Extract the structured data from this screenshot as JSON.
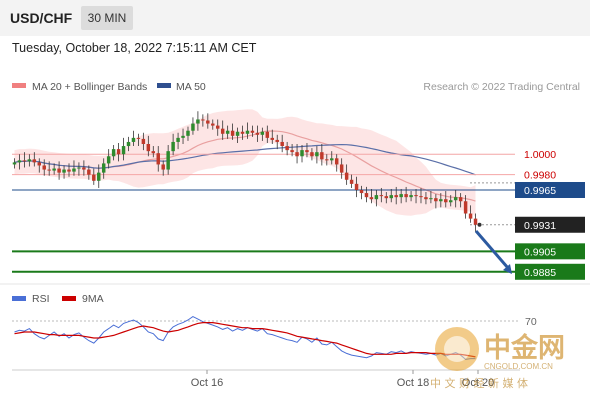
{
  "header": {
    "pair": "USD/CHF",
    "timeframe": "30 MIN"
  },
  "timestamp": "Tuesday, October 18, 2022 7:15:11 AM CET",
  "chart_data": [
    {
      "type": "candlestick",
      "legend": [
        {
          "name": "MA 20 + Bollinger Bands",
          "color": "#f08080"
        },
        {
          "name": "MA 50",
          "color": "#2f4f8f"
        }
      ],
      "credit": "Research © 2022 Trading Central",
      "levels": [
        {
          "label": "1.0000",
          "value": 1.0,
          "color": "#cc0000",
          "style": "text"
        },
        {
          "label": "0.9980",
          "value": 0.998,
          "color": "#cc0000",
          "style": "text"
        },
        {
          "label": "0.9965",
          "value": 0.9965,
          "color": "#1e4b8a",
          "style": "box"
        },
        {
          "label": "0.9931",
          "value": 0.9931,
          "color": "#222222",
          "style": "box"
        },
        {
          "label": "0.9905",
          "value": 0.9905,
          "color": "#1a7a1a",
          "style": "box"
        },
        {
          "label": "0.9885",
          "value": 0.9885,
          "color": "#1a7a1a",
          "style": "box"
        }
      ],
      "ylim": [
        0.9875,
        1.0055
      ],
      "close": [
        0.9992,
        0.9994,
        0.9993,
        0.9995,
        0.9992,
        0.9989,
        0.9985,
        0.9984,
        0.9986,
        0.9982,
        0.9985,
        0.9983,
        0.9986,
        0.9987,
        0.9985,
        0.998,
        0.9974,
        0.9982,
        0.9991,
        0.9998,
        1.0005,
        1.0,
        1.0008,
        1.0012,
        1.0016,
        1.0015,
        1.001,
        1.0003,
        1.0001,
        0.999,
        0.9985,
        1.0003,
        1.0012,
        1.0016,
        1.0018,
        1.0023,
        1.003,
        1.0034,
        1.0033,
        1.003,
        1.0028,
        1.0025,
        1.002,
        1.0023,
        1.0018,
        1.0022,
        1.002,
        1.0023,
        1.0021,
        1.0019,
        1.0022,
        1.0016,
        1.0014,
        1.0012,
        1.0008,
        1.0004,
        1.0002,
        0.9998,
        1.0004,
        1.0002,
        0.9998,
        1.0002,
        0.9995,
        0.9994,
        0.9996,
        0.999,
        0.9982,
        0.9975,
        0.9971,
        0.9965,
        0.9962,
        0.9958,
        0.9956,
        0.996,
        0.9959,
        0.9957,
        0.996,
        0.9958,
        0.9961,
        0.9958,
        0.996,
        0.9959,
        0.9958,
        0.9956,
        0.9957,
        0.9954,
        0.9956,
        0.9953,
        0.9955,
        0.9958,
        0.9954,
        0.9942,
        0.9937,
        0.9931
      ]
    },
    {
      "type": "line",
      "legend": [
        {
          "name": "RSI",
          "color": "#4a6fd6"
        },
        {
          "name": "9MA",
          "color": "#cc0000"
        }
      ],
      "ylim": [
        10,
        80
      ],
      "y_label": "70",
      "x_labels": [
        "Oct 16",
        "Oct 18",
        "Oct 20"
      ],
      "rsi": [
        52,
        54,
        53,
        56,
        50,
        46,
        44,
        48,
        52,
        47,
        50,
        45,
        49,
        51,
        46,
        42,
        39,
        45,
        52,
        56,
        60,
        57,
        62,
        64,
        66,
        63,
        58,
        52,
        50,
        44,
        42,
        52,
        58,
        61,
        63,
        66,
        70,
        67,
        64,
        62,
        60,
        58,
        55,
        57,
        53,
        56,
        54,
        57,
        55,
        53,
        56,
        50,
        49,
        47,
        45,
        43,
        42,
        40,
        46,
        44,
        40,
        45,
        38,
        37,
        40,
        35,
        30,
        27,
        25,
        24,
        23,
        22,
        24,
        28,
        27,
        26,
        29,
        28,
        30,
        27,
        29,
        28,
        27,
        26,
        27,
        25,
        27,
        24,
        26,
        28,
        25,
        20,
        21,
        21
      ],
      "ma": [
        50,
        51,
        52,
        52,
        52,
        51,
        50,
        49,
        49,
        48,
        48,
        48,
        48,
        48,
        47,
        46,
        45,
        45,
        46,
        47,
        48,
        50,
        52,
        54,
        56,
        58,
        59,
        58,
        57,
        55,
        53,
        52,
        53,
        54,
        56,
        58,
        60,
        62,
        63,
        63,
        63,
        62,
        61,
        60,
        59,
        58,
        57,
        57,
        56,
        56,
        56,
        55,
        54,
        53,
        52,
        51,
        49,
        47,
        46,
        45,
        44,
        43,
        42,
        41,
        40,
        39,
        37,
        35,
        33,
        31,
        29,
        27,
        26,
        26,
        26,
        26,
        26,
        27,
        27,
        27,
        28,
        28,
        28,
        28,
        27,
        27,
        27,
        26,
        26,
        26,
        26,
        25,
        24,
        23
      ]
    }
  ],
  "watermark": {
    "brand_cn": "中金网",
    "domain": "CNGOLD.COM.CN",
    "tagline_cn": "中 文 财 经 新 媒 体"
  }
}
